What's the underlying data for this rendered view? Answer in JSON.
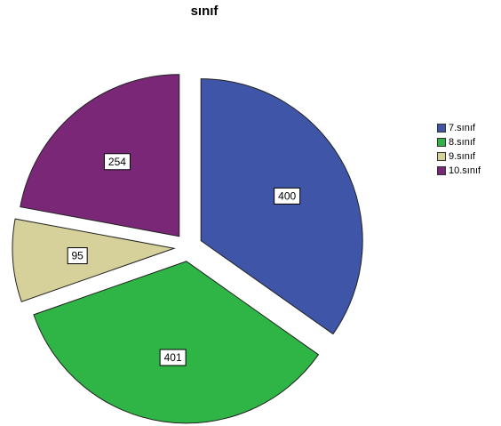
{
  "chart_data": {
    "type": "pie",
    "title": "sınıf",
    "categories": [
      "7.sınıf",
      "8.sınıf",
      "9.sınıf",
      "10.sınıf"
    ],
    "values": [
      400,
      401,
      95,
      254
    ],
    "colors": [
      "#3f56a8",
      "#2fb545",
      "#d6d19a",
      "#7b2778"
    ],
    "exploded": true,
    "data_labels": [
      "400",
      "401",
      "95",
      "254"
    ],
    "legend": {
      "placement": "right",
      "entries": [
        "7.sınıf",
        "8.sınıf",
        "9.sınıf",
        "10.sınıf"
      ]
    }
  }
}
